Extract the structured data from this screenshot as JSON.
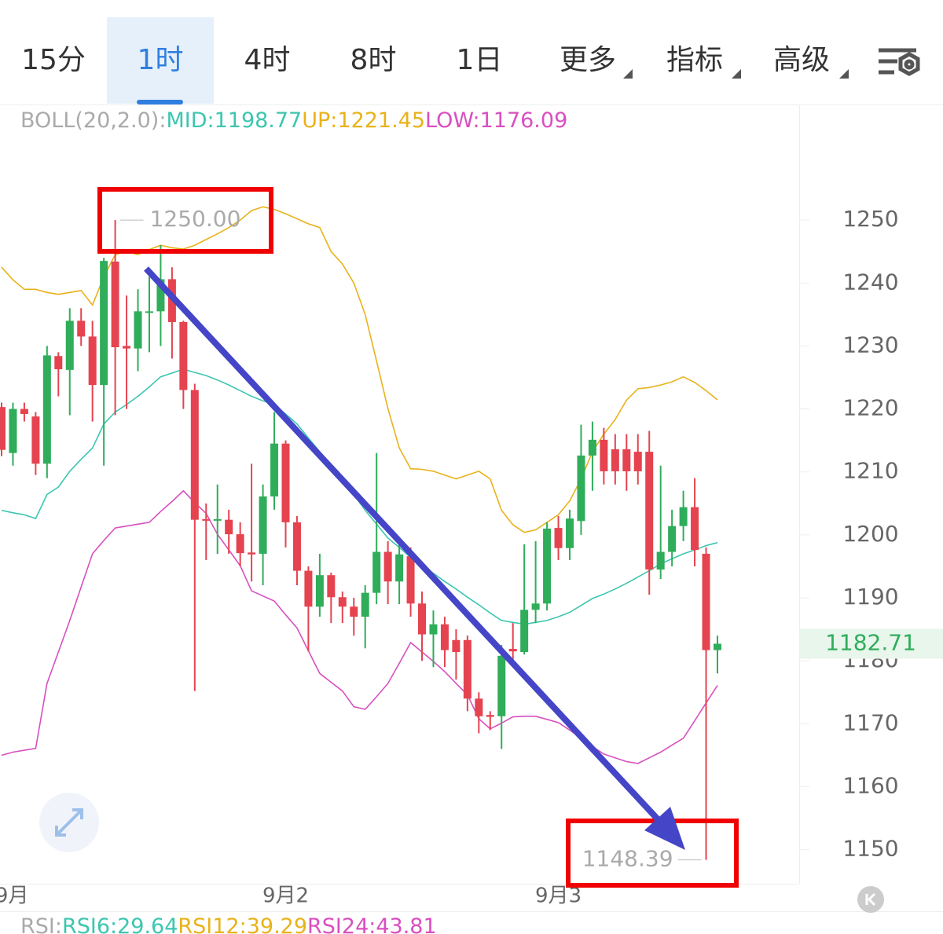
{
  "tabs": [
    "15分",
    "1时",
    "4时",
    "8时",
    "1日",
    "更多",
    "指标",
    "高级"
  ],
  "active_tab": 1,
  "boll_title": "BOLL(20,2.0):",
  "rsi_legend": [
    "RSI:",
    "RSI6:29.64",
    "RSI12:39.29",
    "RSI24:43.81"
  ],
  "chart_data": {
    "type": "candlestick",
    "categories": [
      null,
      "9月",
      null,
      null,
      null,
      null,
      null,
      null,
      null,
      null,
      null,
      null,
      null,
      null,
      null,
      null,
      null,
      null,
      null,
      null,
      null,
      null,
      null,
      null,
      null,
      "9月2",
      null,
      null,
      null,
      null,
      null,
      null,
      null,
      null,
      null,
      null,
      null,
      null,
      null,
      null,
      null,
      null,
      null,
      null,
      null,
      null,
      null,
      null,
      null,
      "9月3",
      null,
      null,
      null,
      null,
      null,
      null,
      null,
      null,
      null,
      null,
      null,
      null,
      null,
      null
    ],
    "open": [
      1220.3,
      1213,
      1220,
      1218.8,
      1211.3,
      1228.4,
      1226.2,
      1234,
      1231.5,
      1223.8,
      1243.4,
      1230,
      1229.6,
      1235.4,
      1235.5,
      1240.6,
      1233.8,
      1223,
      1202.5,
      1202.3,
      1202.4,
      1200.1,
      1197.2,
      1197,
      1206.1,
      1214.5,
      1202,
      1194.3,
      1188.6,
      1193.6,
      1190.1,
      1188.6,
      1187,
      1190.8,
      1197.3,
      1192.6,
      1196.6,
      1189.1,
      1184.2,
      1185.8,
      1183.3,
      1183.3,
      1174,
      1171.4,
      1171.2,
      1181.9,
      1181.4,
      1188.1,
      1189.1,
      1201.1,
      1197.9,
      1202.2,
      1212.6,
      1215.1,
      1213.6,
      1213.6,
      1213.2,
      1213.2,
      1194.5,
      1197.3,
      1201.4,
      1204.4,
      1197,
      1181.7
    ],
    "high": [
      1221,
      1221,
      1221,
      1219.5,
      1230,
      1229,
      1236,
      1236,
      1234,
      1244,
      1250,
      1238,
      1239,
      1241,
      1246,
      1242.5,
      1234,
      1224,
      1205,
      1208,
      1204,
      1202,
      1211.3,
      1208,
      1219.5,
      1215,
      1203,
      1195,
      1197,
      1194,
      1191,
      1190,
      1192,
      1213,
      1199,
      1199,
      1198,
      1191,
      1188,
      1187,
      1185,
      1184,
      1175,
      1172,
      1182.5,
      1186,
      1198.5,
      1199,
      1202,
      1203,
      1204,
      1217.5,
      1218,
      1217,
      1216,
      1216,
      1216,
      1216.5,
      1211,
      1204,
      1207,
      1209,
      1198,
      1184
    ],
    "low": [
      1212.5,
      1211,
      1218,
      1209.5,
      1209,
      1222,
      1219,
      1230,
      1218,
      1211,
      1219,
      1220,
      1226,
      1229,
      1230,
      1228,
      1220,
      1175.2,
      1196,
      1197,
      1197,
      1195,
      1192.6,
      1192,
      1204,
      1198,
      1192,
      1181.5,
      1187,
      1186,
      1186,
      1184,
      1182,
      1189,
      1189,
      1189,
      1187,
      1180,
      1179,
      1179,
      1177,
      1172,
      1168.5,
      1169,
      1166,
      1180,
      1181,
      1186,
      1188,
      1196,
      1196,
      1200,
      1207,
      1208,
      1208,
      1207,
      1208,
      1190.5,
      1193,
      1195,
      1199,
      1195,
      1148.39,
      1178
    ],
    "close": [
      1213.5,
      1220,
      1219.2,
      1211.3,
      1228.5,
      1226.3,
      1234,
      1231.5,
      1223.8,
      1243.5,
      1229.8,
      1229.6,
      1235.5,
      1235.5,
      1240.6,
      1233.8,
      1223,
      1202.4,
      1202.3,
      1202.5,
      1200.1,
      1197.1,
      1196.9,
      1206.1,
      1214.5,
      1202,
      1194.3,
      1188.6,
      1193.6,
      1190.1,
      1188.6,
      1187,
      1190.8,
      1197.3,
      1192.6,
      1196.9,
      1189.1,
      1184.2,
      1185.8,
      1181.7,
      1181.4,
      1174,
      1171.2,
      1171.1,
      1180.8,
      1181.5,
      1188.1,
      1189.1,
      1201,
      1197.9,
      1202.6,
      1212.6,
      1215.1,
      1210.1,
      1210.1,
      1210.1,
      1210.1,
      1194.5,
      1197.3,
      1201.4,
      1204.4,
      1197.6,
      1181.7,
      1182.71
    ],
    "up_color": "#2fad5a",
    "down_color": "#e5434f",
    "series": [
      {
        "name": "MID:1198.77",
        "color": "#3cc6b0",
        "values": [
          1203.9,
          1203.5,
          1203.2,
          1202.6,
          1206.4,
          1207.6,
          1210.1,
          1212,
          1213.8,
          1217.6,
          1219.5,
          1220.7,
          1222,
          1223.5,
          1225.1,
          1225.7,
          1226.3,
          1225.8,
          1225.3,
          1224.6,
          1223.8,
          1222.9,
          1222,
          1221.3,
          1220.7,
          1219.2,
          1217.6,
          1215.4,
          1213.2,
          1211,
          1208.9,
          1206.4,
          1203.9,
          1201.7,
          1199.5,
          1198,
          1196.4,
          1195.1,
          1193.9,
          1192.6,
          1191.4,
          1190.1,
          1188.9,
          1187.6,
          1186.4,
          1186.1,
          1185.8,
          1186.1,
          1186.4,
          1187,
          1187.7,
          1188.8,
          1189.9,
          1190.6,
          1191.4,
          1192.3,
          1193.3,
          1194.3,
          1195.4,
          1196.2,
          1197,
          1197.6,
          1198.3,
          1198.77
        ]
      },
      {
        "name": "UP:1221.45",
        "color": "#e8b21a",
        "values": [
          1242.5,
          1240.5,
          1239,
          1239,
          1238.5,
          1238.2,
          1238.5,
          1238.8,
          1236.5,
          1241,
          1244.5,
          1245,
          1244.5,
          1245.3,
          1246,
          1245.6,
          1245.4,
          1246,
          1246.9,
          1247.8,
          1248.8,
          1250,
          1251.5,
          1252.1,
          1251.7,
          1251,
          1250.2,
          1249.4,
          1248.8,
          1245,
          1243,
          1240,
          1235,
          1227.6,
          1220.1,
          1213.8,
          1210.5,
          1210.4,
          1210.1,
          1209.5,
          1208.9,
          1209.5,
          1210.1,
          1208.9,
          1203.9,
          1201.6,
          1200.4,
          1200.8,
          1202,
          1203.2,
          1205.4,
          1208.9,
          1213.2,
          1216,
          1218.3,
          1221.4,
          1223.2,
          1223.4,
          1223.8,
          1224.3,
          1225.1,
          1224.2,
          1222.9,
          1221.45
        ]
      },
      {
        "name": "LOW:1176.09",
        "color": "#d94fc0",
        "values": [
          1165,
          1165.5,
          1165.8,
          1166.1,
          1176.4,
          1181.4,
          1186.4,
          1191.7,
          1197,
          1199.1,
          1201.1,
          1201.4,
          1201.7,
          1202,
          1203.7,
          1205.3,
          1207,
          1205.1,
          1203.4,
          1200.1,
          1197.6,
          1195.1,
          1191.1,
          1190.3,
          1189.5,
          1187.3,
          1185.2,
          1181.6,
          1178,
          1176.6,
          1175.2,
          1172.7,
          1172.3,
          1174.3,
          1176.4,
          1179.6,
          1182.9,
          1181.4,
          1179.9,
          1178.3,
          1176.4,
          1174.6,
          1170.8,
          1169.2,
          1170.1,
          1171.1,
          1171.2,
          1171.2,
          1170.7,
          1170.2,
          1169,
          1167.7,
          1166.4,
          1165.2,
          1164.6,
          1164,
          1163.7,
          1164.6,
          1165.5,
          1166.6,
          1167.7,
          1170.5,
          1173.3,
          1176.09
        ]
      }
    ],
    "annotations": {
      "max_label": "1250.00",
      "min_label": "1148.39",
      "last_price": "1182.71"
    },
    "ylim": [
      1144.6,
      1268.1
    ],
    "yticks": [
      1150,
      1160,
      1170,
      1180,
      1190,
      1200,
      1210,
      1220,
      1230,
      1240,
      1250
    ]
  }
}
